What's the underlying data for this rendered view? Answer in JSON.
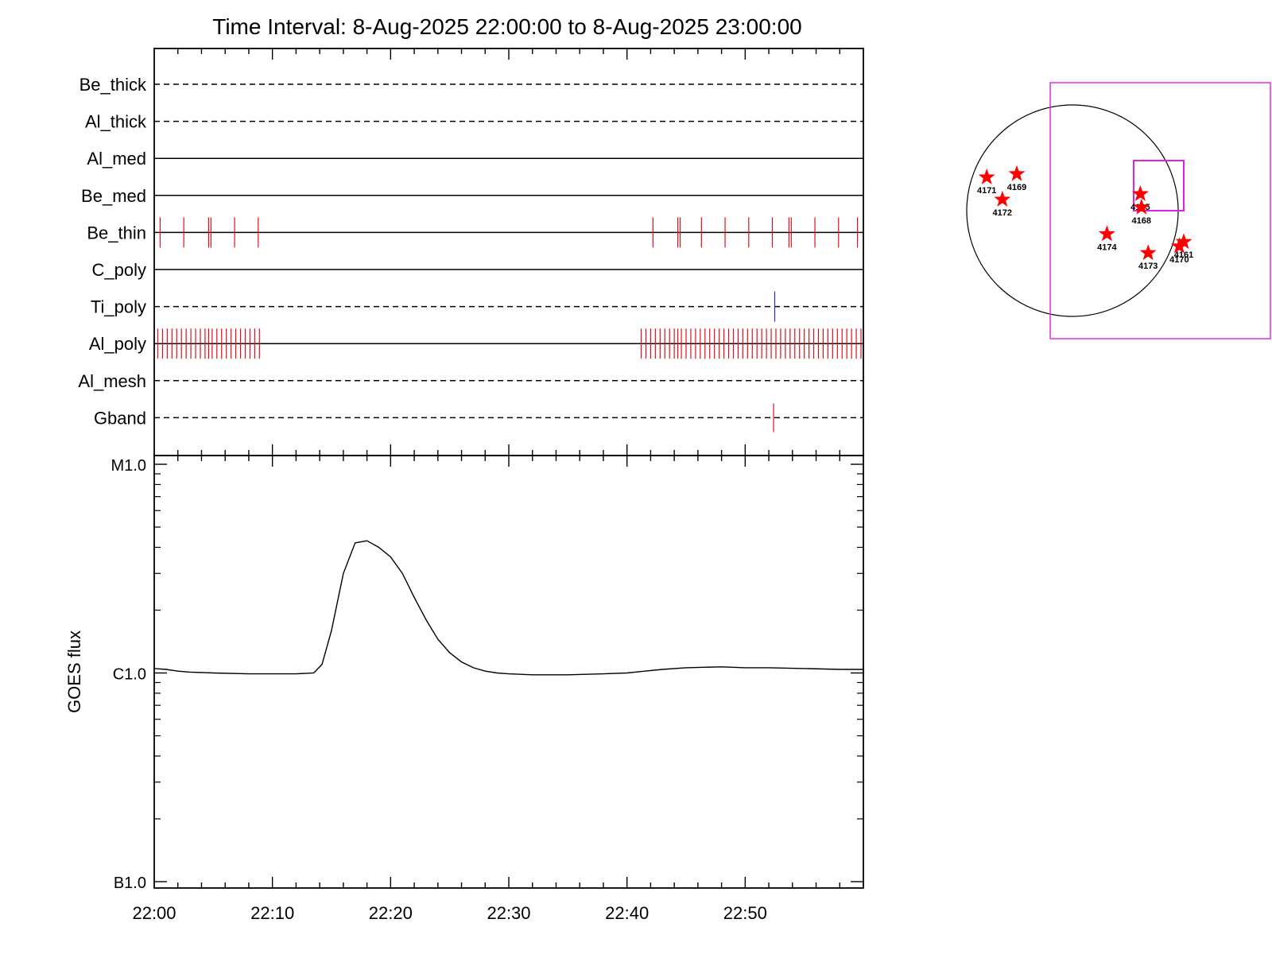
{
  "title": "Time Interval:  8-Aug-2025 22:00:00 to  8-Aug-2025 23:00:00",
  "chart_data": [
    {
      "type": "event-timeline",
      "x_unit": "minutes after 22:00",
      "xlim": [
        0,
        60
      ],
      "rows": [
        {
          "label": "Be_thick",
          "style": "dashed",
          "events": []
        },
        {
          "label": "Al_thick",
          "style": "dashed",
          "events": []
        },
        {
          "label": "Al_med",
          "style": "solid",
          "events": []
        },
        {
          "label": "Be_med",
          "style": "solid",
          "events": []
        },
        {
          "label": "Be_thin",
          "style": "solid",
          "event_color": "#e0101a",
          "events": [
            0.5,
            2.5,
            4.6,
            4.8,
            6.8,
            8.8,
            42.2,
            44.3,
            44.5,
            46.3,
            48.3,
            50.3,
            52.3,
            53.7,
            53.9,
            55.9,
            57.9,
            59.5
          ]
        },
        {
          "label": "C_poly",
          "style": "solid",
          "events": []
        },
        {
          "label": "Ti_poly",
          "style": "dashed",
          "event_color": "#3030c0",
          "events": [
            52.5
          ]
        },
        {
          "label": "Al_poly",
          "style": "solid",
          "event_color": "#e0101a",
          "events": [
            0.3,
            0.7,
            1.1,
            1.5,
            1.9,
            2.3,
            2.7,
            3.1,
            3.5,
            3.9,
            4.3,
            4.6,
            4.9,
            5.3,
            5.7,
            6.1,
            6.5,
            6.9,
            7.3,
            7.7,
            8.1,
            8.5,
            8.9,
            41.2,
            41.6,
            42.0,
            42.4,
            42.8,
            43.2,
            43.6,
            44.0,
            44.3,
            44.6,
            45.0,
            45.4,
            45.8,
            46.2,
            46.6,
            47.0,
            47.4,
            47.8,
            48.2,
            48.6,
            49.0,
            49.4,
            49.8,
            50.2,
            50.6,
            51.0,
            51.4,
            51.8,
            52.2,
            52.6,
            53.0,
            53.4,
            53.8,
            54.2,
            54.6,
            55.0,
            55.4,
            55.8,
            56.2,
            56.6,
            57.0,
            57.4,
            57.8,
            58.2,
            58.6,
            59.0,
            59.4,
            59.8
          ]
        },
        {
          "label": "Al_mesh",
          "style": "dashed",
          "events": []
        },
        {
          "label": "Gband",
          "style": "dashed",
          "event_color": "#e0101a",
          "events": [
            52.4
          ]
        }
      ]
    },
    {
      "type": "line",
      "ylabel": "GOES flux",
      "yscale": "log",
      "ylim": [
        1e-07,
        1e-05
      ],
      "y_tick_values": [
        1e-07,
        1e-06,
        1e-05
      ],
      "y_tick_labels": [
        "B1.0",
        "C1.0",
        "M1.0"
      ],
      "x_tick_values": [
        0,
        10,
        20,
        30,
        40,
        50
      ],
      "x_tick_labels": [
        "22:00",
        "22:10",
        "22:20",
        "22:30",
        "22:40",
        "22:50"
      ],
      "xlim": [
        0,
        60
      ],
      "series": [
        {
          "color": "#000000",
          "x": [
            0,
            1,
            2,
            3,
            5,
            8,
            10,
            12,
            13.5,
            14.2,
            15,
            16,
            17,
            18,
            19,
            20,
            21,
            22,
            23,
            24,
            25,
            26,
            27,
            28,
            29,
            30,
            32,
            35,
            38,
            40,
            41.5,
            43,
            45,
            48,
            50,
            52,
            55,
            58,
            60
          ],
          "y": [
            1.05e-06,
            1.04e-06,
            1.02e-06,
            1.01e-06,
            1e-06,
            9.9e-07,
            9.9e-07,
            9.9e-07,
            1e-06,
            1.1e-06,
            1.6e-06,
            3e-06,
            4.2e-06,
            4.3e-06,
            4e-06,
            3.6e-06,
            3e-06,
            2.3e-06,
            1.8e-06,
            1.45e-06,
            1.25e-06,
            1.13e-06,
            1.06e-06,
            1.02e-06,
            1e-06,
            9.9e-07,
            9.8e-07,
            9.8e-07,
            9.9e-07,
            1e-06,
            1.02e-06,
            1.04e-06,
            1.06e-06,
            1.07e-06,
            1.06e-06,
            1.06e-06,
            1.05e-06,
            1.04e-06,
            1.04e-06
          ]
        }
      ]
    },
    {
      "type": "scatter",
      "description_of_axes": "solar disk map; points are active regions in solar arcsec",
      "xlim": [
        -1200,
        1200
      ],
      "ylim": [
        -1200,
        1200
      ],
      "disk_radius": 950,
      "fov_boxes": [
        {
          "x0": -200,
          "x1": 1950,
          "y0": -1150,
          "y1": 1150,
          "color": "#e020e0"
        },
        {
          "x0": 550,
          "x1": 1000,
          "y0": 0,
          "y1": 450,
          "color": "#e020e0"
        }
      ],
      "points": [
        {
          "label": "4171",
          "x": -770,
          "y": 300
        },
        {
          "label": "4169",
          "x": -500,
          "y": 330
        },
        {
          "label": "4172",
          "x": -630,
          "y": 100
        },
        {
          "label": "4165",
          "x": 610,
          "y": 150
        },
        {
          "label": "4168",
          "x": 620,
          "y": 30
        },
        {
          "label": "4174",
          "x": 310,
          "y": -210
        },
        {
          "label": "4173",
          "x": 680,
          "y": -380
        },
        {
          "label": "4170",
          "x": 960,
          "y": -320
        },
        {
          "label": "4161",
          "x": 1000,
          "y": -280
        }
      ],
      "point_color": "#ff0000"
    }
  ]
}
